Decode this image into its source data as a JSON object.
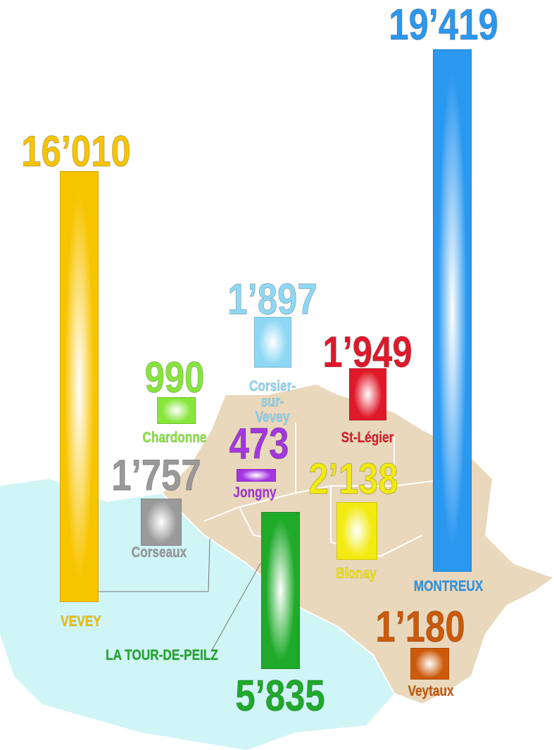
{
  "chart_data": {
    "type": "bar",
    "categories": [
      "VEVEY",
      "MONTREUX",
      "LA TOUR-DE-PEILZ",
      "Corsier-sur-Vevey",
      "St-Légier",
      "Chardonne",
      "Jongny",
      "Corseaux",
      "Blonay",
      "Veytaux"
    ],
    "values": [
      16010,
      19419,
      5835,
      1897,
      1949,
      990,
      473,
      1757,
      2138,
      1180
    ],
    "value_labels": [
      "16’010",
      "19’419",
      "5’835",
      "1’897",
      "1’949",
      "990",
      "473",
      "1’757",
      "2’138",
      "1’180"
    ],
    "colors": [
      "#f7c400",
      "#2b98f0",
      "#1faa2a",
      "#8fd8f5",
      "#e0192a",
      "#86e63a",
      "#a336e0",
      "#9a9a9a",
      "#f2ea10",
      "#cc5a0a"
    ]
  }
}
